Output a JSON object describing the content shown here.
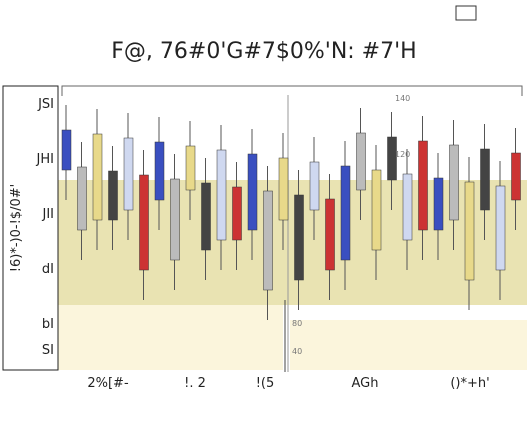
{
  "header": {
    "title": "F@, 76#0'G#7$0%'N: #7'H"
  },
  "y_axis": {
    "label": "!6)*-)0-!$/0#'",
    "tick_labels": [
      "JSI",
      "JHI",
      "JII",
      "dI",
      "bI",
      "SI"
    ]
  },
  "x_axis": {
    "tick_labels": [
      "2%[#-",
      "!. 2",
      "!(5",
      "AGh",
      "()*+h'"
    ]
  },
  "inset_axis": {
    "tick_labels": [
      "140",
      "120",
      "80",
      "40"
    ]
  }
}
